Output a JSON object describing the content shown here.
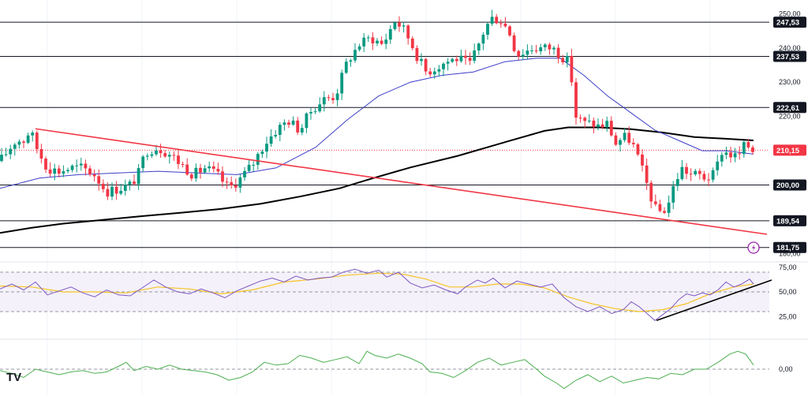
{
  "colors": {
    "up": "#089981",
    "down": "#f23645",
    "sma_fast": "#3d3dc8",
    "sma_slow": "#000000",
    "trendline": "#f23645",
    "rsi": "#7e57c2",
    "rsi_ma": "#f7c325",
    "rsi_band": "#ede7f6",
    "momentum": "#4caf50",
    "grid": "#f0f3fa",
    "level": "#131722",
    "last_price": "#f23645"
  },
  "chart_data": {
    "type": "candlestick",
    "price_axis": {
      "range": [
        178,
        254
      ],
      "ticks": [
        "250,00",
        "240,00",
        "230,00",
        "220,00",
        "180,00"
      ]
    },
    "levels": [
      {
        "name": "level-247",
        "value": 247.53,
        "label": "247,53"
      },
      {
        "name": "level-237",
        "value": 237.53,
        "label": "237,53"
      },
      {
        "name": "level-222",
        "value": 222.61,
        "label": "222,61"
      },
      {
        "name": "level-200",
        "value": 200.0,
        "label": "200,00"
      },
      {
        "name": "level-189",
        "value": 189.54,
        "label": "189,54"
      },
      {
        "name": "level-181",
        "value": 181.75,
        "label": "181,75"
      }
    ],
    "last_price": {
      "value": 210.15,
      "label": "210,15"
    },
    "price_anchors": [
      [
        0,
        207
      ],
      [
        10,
        210
      ],
      [
        20,
        213
      ],
      [
        30,
        213
      ],
      [
        38,
        216
      ],
      [
        48,
        210
      ],
      [
        60,
        205
      ],
      [
        75,
        204
      ],
      [
        90,
        205
      ],
      [
        105,
        205
      ],
      [
        120,
        203
      ],
      [
        135,
        198
      ],
      [
        150,
        199
      ],
      [
        165,
        200
      ],
      [
        175,
        203
      ],
      [
        185,
        210
      ],
      [
        200,
        211
      ],
      [
        215,
        209
      ],
      [
        230,
        206
      ],
      [
        245,
        203
      ],
      [
        260,
        205
      ],
      [
        275,
        203
      ],
      [
        290,
        199
      ],
      [
        305,
        202
      ],
      [
        320,
        206
      ],
      [
        335,
        212
      ],
      [
        350,
        216
      ],
      [
        365,
        219
      ],
      [
        380,
        216
      ],
      [
        395,
        222
      ],
      [
        410,
        225
      ],
      [
        425,
        226
      ],
      [
        440,
        236
      ],
      [
        455,
        241
      ],
      [
        470,
        243
      ],
      [
        485,
        241
      ],
      [
        500,
        248
      ],
      [
        510,
        246
      ],
      [
        520,
        242
      ],
      [
        530,
        237
      ],
      [
        540,
        233
      ],
      [
        550,
        234
      ],
      [
        565,
        236
      ],
      [
        580,
        237
      ],
      [
        595,
        235
      ],
      [
        605,
        240
      ],
      [
        615,
        246
      ],
      [
        625,
        249
      ],
      [
        635,
        248
      ],
      [
        645,
        245
      ],
      [
        655,
        238
      ],
      [
        665,
        239
      ],
      [
        675,
        240
      ],
      [
        690,
        240
      ],
      [
        700,
        240
      ],
      [
        710,
        238
      ],
      [
        720,
        236
      ],
      [
        725,
        230
      ],
      [
        730,
        220
      ],
      [
        740,
        218
      ],
      [
        750,
        218
      ],
      [
        760,
        217
      ],
      [
        770,
        218
      ],
      [
        780,
        212
      ],
      [
        790,
        214
      ],
      [
        800,
        213
      ],
      [
        810,
        207
      ],
      [
        820,
        200
      ],
      [
        830,
        193
      ],
      [
        840,
        192
      ],
      [
        850,
        196
      ],
      [
        855,
        201
      ],
      [
        865,
        205
      ],
      [
        875,
        203
      ],
      [
        885,
        203
      ],
      [
        895,
        202
      ],
      [
        905,
        203
      ],
      [
        915,
        210
      ],
      [
        925,
        209
      ],
      [
        935,
        208
      ],
      [
        945,
        212
      ],
      [
        955,
        210
      ]
    ],
    "sma_fast_anchors": [
      [
        0,
        199
      ],
      [
        50,
        202
      ],
      [
        100,
        203
      ],
      [
        150,
        203.5
      ],
      [
        200,
        204
      ],
      [
        250,
        203.5
      ],
      [
        300,
        203
      ],
      [
        350,
        205
      ],
      [
        400,
        211
      ],
      [
        440,
        219
      ],
      [
        480,
        226
      ],
      [
        520,
        230
      ],
      [
        560,
        232
      ],
      [
        600,
        233
      ],
      [
        640,
        236
      ],
      [
        680,
        237
      ],
      [
        710,
        237
      ],
      [
        740,
        232
      ],
      [
        770,
        226
      ],
      [
        800,
        221
      ],
      [
        830,
        216
      ],
      [
        860,
        213
      ],
      [
        890,
        210
      ],
      [
        920,
        210
      ],
      [
        955,
        209
      ]
    ],
    "sma_slow_anchors": [
      [
        0,
        186
      ],
      [
        40,
        187.5
      ],
      [
        80,
        188.7
      ],
      [
        130,
        189.8
      ],
      [
        180,
        190.9
      ],
      [
        230,
        191.9
      ],
      [
        280,
        193
      ],
      [
        330,
        194.5
      ],
      [
        380,
        196.6
      ],
      [
        430,
        199
      ],
      [
        470,
        201.8
      ],
      [
        520,
        205.1
      ],
      [
        580,
        208.5
      ],
      [
        640,
        212.5
      ],
      [
        690,
        215.8
      ],
      [
        720,
        216.8
      ],
      [
        760,
        216.8
      ],
      [
        800,
        216.3
      ],
      [
        840,
        215.3
      ],
      [
        880,
        214
      ],
      [
        920,
        213.5
      ],
      [
        955,
        213
      ]
    ],
    "trendline": {
      "start": [
        45,
        216.4
      ],
      "end": [
        972,
        185.6
      ]
    },
    "rsi": {
      "range": [
        10,
        90
      ],
      "band": [
        70,
        30
      ],
      "mid": 50,
      "ticks": [
        "75,00",
        "50,00",
        "25,00"
      ],
      "series": [
        [
          0,
          53
        ],
        [
          15,
          58
        ],
        [
          30,
          52
        ],
        [
          45,
          60
        ],
        [
          60,
          47
        ],
        [
          75,
          51
        ],
        [
          90,
          55
        ],
        [
          105,
          49
        ],
        [
          120,
          45
        ],
        [
          135,
          52
        ],
        [
          150,
          47
        ],
        [
          165,
          46
        ],
        [
          180,
          54
        ],
        [
          195,
          62
        ],
        [
          210,
          55
        ],
        [
          225,
          50
        ],
        [
          240,
          48
        ],
        [
          255,
          53
        ],
        [
          270,
          49
        ],
        [
          285,
          44
        ],
        [
          300,
          51
        ],
        [
          315,
          56
        ],
        [
          330,
          61
        ],
        [
          345,
          64
        ],
        [
          360,
          60
        ],
        [
          375,
          66
        ],
        [
          390,
          62
        ],
        [
          405,
          64
        ],
        [
          420,
          65
        ],
        [
          435,
          70
        ],
        [
          450,
          73
        ],
        [
          465,
          69
        ],
        [
          480,
          72
        ],
        [
          490,
          65
        ],
        [
          505,
          70
        ],
        [
          520,
          59
        ],
        [
          535,
          54
        ],
        [
          550,
          57
        ],
        [
          565,
          52
        ],
        [
          580,
          48
        ],
        [
          590,
          55
        ],
        [
          605,
          62
        ],
        [
          615,
          59
        ],
        [
          625,
          64
        ],
        [
          640,
          54
        ],
        [
          655,
          61
        ],
        [
          670,
          58
        ],
        [
          685,
          55
        ],
        [
          700,
          58
        ],
        [
          715,
          44
        ],
        [
          730,
          35
        ],
        [
          745,
          30
        ],
        [
          760,
          35
        ],
        [
          775,
          28
        ],
        [
          790,
          32
        ],
        [
          800,
          40
        ],
        [
          810,
          35
        ],
        [
          820,
          28
        ],
        [
          830,
          21
        ],
        [
          840,
          27
        ],
        [
          850,
          33
        ],
        [
          860,
          42
        ],
        [
          870,
          48
        ],
        [
          880,
          46
        ],
        [
          890,
          49
        ],
        [
          900,
          47
        ],
        [
          910,
          52
        ],
        [
          920,
          60
        ],
        [
          930,
          55
        ],
        [
          940,
          58
        ],
        [
          950,
          63
        ],
        [
          955,
          58
        ]
      ],
      "ma_series": [
        [
          0,
          56
        ],
        [
          40,
          55
        ],
        [
          80,
          50
        ],
        [
          120,
          50
        ],
        [
          160,
          49
        ],
        [
          200,
          55
        ],
        [
          240,
          53
        ],
        [
          280,
          48
        ],
        [
          320,
          52
        ],
        [
          360,
          60
        ],
        [
          400,
          63
        ],
        [
          440,
          67
        ],
        [
          480,
          69
        ],
        [
          510,
          68
        ],
        [
          540,
          63
        ],
        [
          570,
          55
        ],
        [
          600,
          55
        ],
        [
          630,
          58
        ],
        [
          660,
          58
        ],
        [
          690,
          54
        ],
        [
          720,
          45
        ],
        [
          750,
          38
        ],
        [
          780,
          33
        ],
        [
          810,
          30
        ],
        [
          840,
          32
        ],
        [
          870,
          38
        ],
        [
          900,
          48
        ],
        [
          930,
          55
        ],
        [
          955,
          58
        ]
      ],
      "trendline": {
        "start": [
          832,
          21
        ],
        "end": [
          978,
          62
        ]
      }
    },
    "momentum": {
      "range": [
        -16,
        16
      ],
      "ticks": [
        "0,00"
      ],
      "series": [
        [
          0,
          -1
        ],
        [
          15,
          -3
        ],
        [
          30,
          -6
        ],
        [
          45,
          0
        ],
        [
          60,
          -2
        ],
        [
          75,
          -4
        ],
        [
          90,
          -2
        ],
        [
          105,
          -1
        ],
        [
          120,
          -3
        ],
        [
          135,
          -2
        ],
        [
          150,
          2
        ],
        [
          160,
          5
        ],
        [
          170,
          -1
        ],
        [
          185,
          2
        ],
        [
          200,
          0
        ],
        [
          215,
          3
        ],
        [
          230,
          0
        ],
        [
          245,
          -1
        ],
        [
          260,
          -2
        ],
        [
          275,
          -4
        ],
        [
          290,
          -8
        ],
        [
          305,
          -6
        ],
        [
          320,
          -2
        ],
        [
          335,
          5
        ],
        [
          350,
          3
        ],
        [
          365,
          4
        ],
        [
          380,
          10
        ],
        [
          395,
          8
        ],
        [
          410,
          5
        ],
        [
          425,
          7
        ],
        [
          440,
          9
        ],
        [
          455,
          4
        ],
        [
          465,
          13
        ],
        [
          475,
          10
        ],
        [
          490,
          8
        ],
        [
          505,
          11
        ],
        [
          520,
          8
        ],
        [
          535,
          4
        ],
        [
          545,
          -2
        ],
        [
          560,
          -3
        ],
        [
          575,
          -6
        ],
        [
          590,
          -1
        ],
        [
          605,
          5
        ],
        [
          620,
          8
        ],
        [
          635,
          3
        ],
        [
          650,
          5
        ],
        [
          665,
          7
        ],
        [
          680,
          0
        ],
        [
          690,
          -5
        ],
        [
          705,
          -10
        ],
        [
          715,
          -14
        ],
        [
          730,
          -8
        ],
        [
          745,
          -4
        ],
        [
          760,
          -9
        ],
        [
          775,
          -5
        ],
        [
          790,
          -10
        ],
        [
          805,
          -8
        ],
        [
          820,
          -6
        ],
        [
          835,
          -7
        ],
        [
          850,
          -3
        ],
        [
          865,
          -4
        ],
        [
          880,
          0
        ],
        [
          895,
          0
        ],
        [
          910,
          5
        ],
        [
          925,
          11
        ],
        [
          935,
          13
        ],
        [
          945,
          11
        ],
        [
          955,
          3
        ]
      ]
    }
  },
  "branding": {
    "logo_text": "TV"
  }
}
